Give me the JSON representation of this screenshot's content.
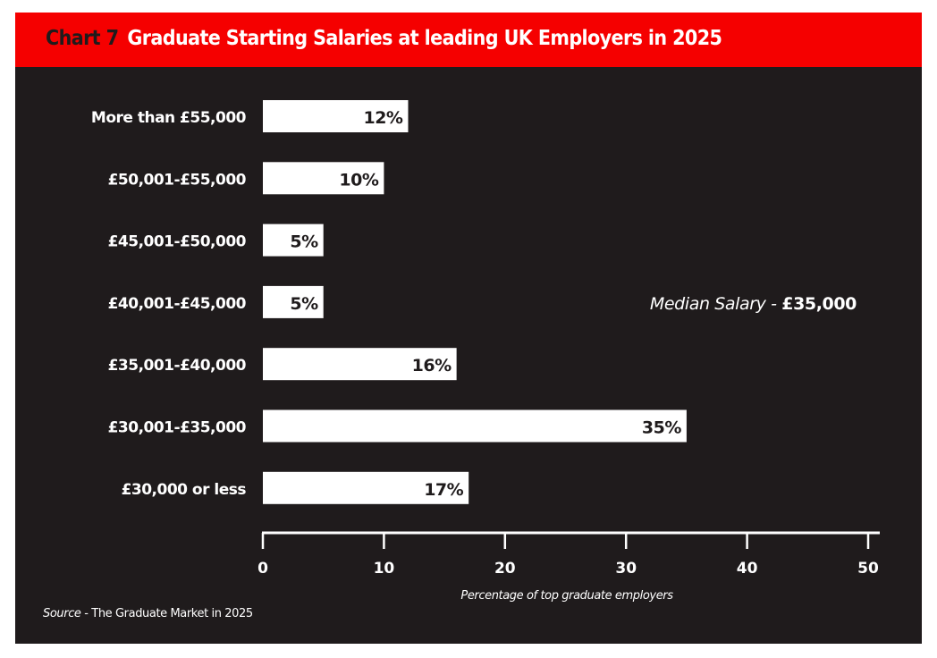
{
  "chart_data": {
    "type": "bar",
    "orientation": "horizontal",
    "chart_number": "Chart 7",
    "title": "Graduate Starting Salaries at leading UK Employers in 2025",
    "categories": [
      "More than £55,000",
      "£50,001-£55,000",
      "£45,001-£50,000",
      "£40,001-£45,000",
      "£35,001-£40,000",
      "£30,001-£35,000",
      "£30,000 or less"
    ],
    "values": [
      12,
      10,
      5,
      5,
      16,
      35,
      17
    ],
    "value_labels": [
      "12%",
      "10%",
      "5%",
      "5%",
      "16%",
      "35%",
      "17%"
    ],
    "xlabel": "Percentage of top graduate employers",
    "ylabel": "",
    "xlim": [
      0,
      50
    ],
    "xticks": [
      0,
      10,
      20,
      30,
      40,
      50
    ],
    "xtick_labels": [
      "0",
      "10",
      "20",
      "30",
      "40",
      "50"
    ],
    "grid": false,
    "annotation": {
      "prefix": "Median Salary - ",
      "value": "£35,000"
    },
    "source": {
      "prefix": "Source",
      "text": " - The Graduate Market in 2025"
    },
    "colors": {
      "header": "#f50000",
      "background": "#1f1b1c",
      "bar": "#ffffff",
      "text": "#ffffff"
    }
  }
}
